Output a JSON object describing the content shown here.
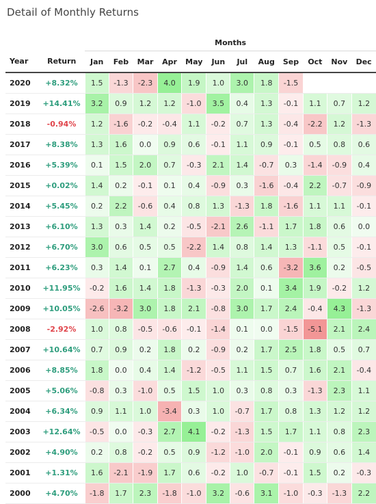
{
  "title": "Detail of Monthly Returns",
  "months_group_label": "Months",
  "headers": {
    "year": "Year",
    "return": "Return",
    "months": [
      "Jan",
      "Feb",
      "Mar",
      "Apr",
      "May",
      "Jun",
      "Jul",
      "Aug",
      "Sep",
      "Oct",
      "Nov",
      "Dec"
    ]
  },
  "colors": {
    "positive_return": "#2e9d7d",
    "negative_return": "#e0434a"
  },
  "rows": [
    {
      "year": "2020",
      "return": "+8.32%",
      "months": [
        "1.5",
        "-1.3",
        "-2.3",
        "4.0",
        "1.9",
        "1.0",
        "3.0",
        "1.8",
        "-1.5",
        "",
        "",
        ""
      ]
    },
    {
      "year": "2019",
      "return": "+14.41%",
      "months": [
        "3.2",
        "0.9",
        "1.2",
        "1.2",
        "-1.0",
        "3.5",
        "0.4",
        "1.3",
        "-0.1",
        "1.1",
        "0.7",
        "1.2"
      ]
    },
    {
      "year": "2018",
      "return": "-0.94%",
      "months": [
        "1.2",
        "-1.6",
        "-0.2",
        "-0.4",
        "1.1",
        "-0.2",
        "0.7",
        "1.3",
        "-0.4",
        "-2.2",
        "1.2",
        "-1.3"
      ]
    },
    {
      "year": "2017",
      "return": "+8.38%",
      "months": [
        "1.3",
        "1.6",
        "0.0",
        "0.9",
        "0.6",
        "-0.1",
        "1.1",
        "0.9",
        "-0.1",
        "0.5",
        "0.8",
        "0.6"
      ]
    },
    {
      "year": "2016",
      "return": "+5.39%",
      "months": [
        "0.1",
        "1.5",
        "2.0",
        "0.7",
        "-0.3",
        "2.1",
        "1.4",
        "-0.7",
        "0.3",
        "-1.4",
        "-0.9",
        "0.4"
      ]
    },
    {
      "year": "2015",
      "return": "+0.02%",
      "months": [
        "1.4",
        "0.2",
        "-0.1",
        "0.1",
        "0.4",
        "-0.9",
        "0.3",
        "-1.6",
        "-0.4",
        "2.2",
        "-0.7",
        "-0.9"
      ]
    },
    {
      "year": "2014",
      "return": "+5.45%",
      "months": [
        "0.2",
        "2.2",
        "-0.6",
        "0.4",
        "0.8",
        "1.3",
        "-1.3",
        "1.8",
        "-1.6",
        "1.1",
        "1.1",
        "-0.1"
      ]
    },
    {
      "year": "2013",
      "return": "+6.10%",
      "months": [
        "1.3",
        "0.3",
        "1.4",
        "0.2",
        "-0.5",
        "-2.1",
        "2.6",
        "-1.1",
        "1.7",
        "1.8",
        "0.6",
        "0.0"
      ]
    },
    {
      "year": "2012",
      "return": "+6.70%",
      "months": [
        "3.0",
        "0.6",
        "0.5",
        "0.5",
        "-2.2",
        "1.4",
        "0.8",
        "1.4",
        "1.3",
        "-1.1",
        "0.5",
        "-0.1"
      ]
    },
    {
      "year": "2011",
      "return": "+6.23%",
      "months": [
        "0.3",
        "1.4",
        "0.1",
        "2.7",
        "0.4",
        "-0.9",
        "1.4",
        "0.6",
        "-3.2",
        "3.6",
        "0.2",
        "-0.5"
      ]
    },
    {
      "year": "2010",
      "return": "+11.95%",
      "months": [
        "-0.2",
        "1.6",
        "1.4",
        "1.8",
        "-1.3",
        "-0.3",
        "2.0",
        "0.1",
        "3.4",
        "1.9",
        "-0.2",
        "1.2"
      ]
    },
    {
      "year": "2009",
      "return": "+10.05%",
      "months": [
        "-2.6",
        "-3.2",
        "3.0",
        "1.8",
        "2.1",
        "-0.8",
        "3.0",
        "1.7",
        "2.4",
        "-0.4",
        "4.3",
        "-1.3"
      ]
    },
    {
      "year": "2008",
      "return": "-2.92%",
      "months": [
        "1.0",
        "0.8",
        "-0.5",
        "-0.6",
        "-0.1",
        "-1.4",
        "0.1",
        "0.0",
        "-1.5",
        "-5.1",
        "2.1",
        "2.4"
      ]
    },
    {
      "year": "2007",
      "return": "+10.64%",
      "months": [
        "0.7",
        "0.9",
        "0.2",
        "1.8",
        "0.2",
        "-0.9",
        "0.2",
        "1.7",
        "2.5",
        "1.8",
        "0.5",
        "0.7"
      ]
    },
    {
      "year": "2006",
      "return": "+8.85%",
      "months": [
        "1.8",
        "0.0",
        "0.4",
        "1.4",
        "-1.2",
        "-0.5",
        "1.1",
        "1.5",
        "0.7",
        "1.6",
        "2.1",
        "-0.4"
      ]
    },
    {
      "year": "2005",
      "return": "+5.06%",
      "months": [
        "-0.8",
        "0.3",
        "-1.0",
        "0.5",
        "1.5",
        "1.0",
        "0.3",
        "0.8",
        "0.3",
        "-1.3",
        "2.3",
        "1.1"
      ]
    },
    {
      "year": "2004",
      "return": "+6.34%",
      "months": [
        "0.9",
        "1.1",
        "1.0",
        "-3.4",
        "0.3",
        "1.0",
        "-0.7",
        "1.7",
        "0.8",
        "1.3",
        "1.2",
        "1.2"
      ]
    },
    {
      "year": "2003",
      "return": "+12.64%",
      "months": [
        "-0.5",
        "0.0",
        "-0.3",
        "2.7",
        "4.1",
        "-0.2",
        "-1.3",
        "1.5",
        "1.7",
        "1.1",
        "0.8",
        "2.3"
      ]
    },
    {
      "year": "2002",
      "return": "+4.90%",
      "months": [
        "0.2",
        "0.8",
        "-0.2",
        "0.5",
        "0.9",
        "-1.2",
        "-1.0",
        "2.0",
        "-0.1",
        "0.9",
        "0.6",
        "1.4"
      ]
    },
    {
      "year": "2001",
      "return": "+1.31%",
      "months": [
        "1.6",
        "-2.1",
        "-1.9",
        "1.7",
        "0.6",
        "-0.2",
        "1.0",
        "-0.7",
        "-0.1",
        "1.5",
        "0.2",
        "-0.3"
      ]
    },
    {
      "year": "2000",
      "return": "+4.70%",
      "months": [
        "-1.8",
        "1.7",
        "2.3",
        "-1.8",
        "-1.0",
        "3.2",
        "-0.6",
        "3.1",
        "-1.0",
        "-0.3",
        "-1.3",
        "2.2"
      ]
    }
  ]
}
